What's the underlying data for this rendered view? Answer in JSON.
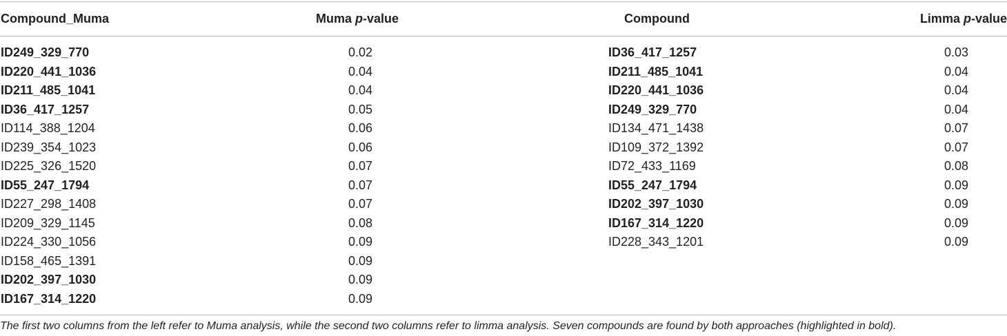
{
  "headers": {
    "col1": "Compound_Muma",
    "col2_prefix": "Muma ",
    "col2_italic": "p",
    "col2_suffix": "-value",
    "col3": "Compound",
    "col4_prefix": "Limma ",
    "col4_italic": "p",
    "col4_suffix": "-value"
  },
  "muma_rows": [
    {
      "compound": "ID249_329_770",
      "pvalue": "0.02",
      "bold": true
    },
    {
      "compound": "ID220_441_1036",
      "pvalue": "0.04",
      "bold": true
    },
    {
      "compound": "ID211_485_1041",
      "pvalue": "0.04",
      "bold": true
    },
    {
      "compound": "ID36_417_1257",
      "pvalue": "0.05",
      "bold": true
    },
    {
      "compound": "ID114_388_1204",
      "pvalue": "0.06",
      "bold": false
    },
    {
      "compound": "ID239_354_1023",
      "pvalue": "0.06",
      "bold": false
    },
    {
      "compound": "ID225_326_1520",
      "pvalue": "0.07",
      "bold": false
    },
    {
      "compound": "ID55_247_1794",
      "pvalue": "0.07",
      "bold": true
    },
    {
      "compound": "ID227_298_1408",
      "pvalue": "0.07",
      "bold": false
    },
    {
      "compound": "ID209_329_1145",
      "pvalue": "0.08",
      "bold": false
    },
    {
      "compound": "ID224_330_1056",
      "pvalue": "0.09",
      "bold": false
    },
    {
      "compound": "ID158_465_1391",
      "pvalue": "0.09",
      "bold": false
    },
    {
      "compound": "ID202_397_1030",
      "pvalue": "0.09",
      "bold": true
    },
    {
      "compound": "ID167_314_1220",
      "pvalue": "0.09",
      "bold": true
    }
  ],
  "limma_rows": [
    {
      "compound": "ID36_417_1257",
      "pvalue": "0.03",
      "bold": true
    },
    {
      "compound": "ID211_485_1041",
      "pvalue": "0.04",
      "bold": true
    },
    {
      "compound": "ID220_441_1036",
      "pvalue": "0.04",
      "bold": true
    },
    {
      "compound": "ID249_329_770",
      "pvalue": "0.04",
      "bold": true
    },
    {
      "compound": "ID134_471_1438",
      "pvalue": "0.07",
      "bold": false
    },
    {
      "compound": "ID109_372_1392",
      "pvalue": "0.07",
      "bold": false
    },
    {
      "compound": "ID72_433_1169",
      "pvalue": "0.08",
      "bold": false
    },
    {
      "compound": "ID55_247_1794",
      "pvalue": "0.09",
      "bold": true
    },
    {
      "compound": "ID202_397_1030",
      "pvalue": "0.09",
      "bold": true
    },
    {
      "compound": "ID167_314_1220",
      "pvalue": "0.09",
      "bold": true
    },
    {
      "compound": "ID228_343_1201",
      "pvalue": "0.09",
      "bold": false
    }
  ],
  "caption": "The first two columns from the left refer to Muma analysis, while the second two columns refer to limma analysis. Seven compounds are found by both approaches (highlighted in bold)."
}
